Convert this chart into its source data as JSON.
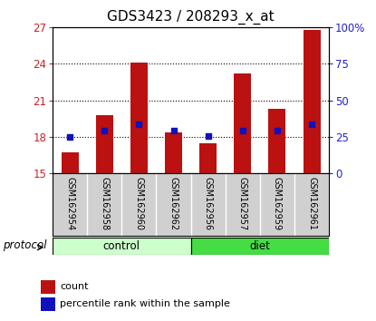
{
  "title": "GDS3423 / 208293_x_at",
  "samples": [
    "GSM162954",
    "GSM162958",
    "GSM162960",
    "GSM162962",
    "GSM162956",
    "GSM162957",
    "GSM162959",
    "GSM162961"
  ],
  "bar_values": [
    16.7,
    19.8,
    24.1,
    18.4,
    17.5,
    23.2,
    20.3,
    26.8
  ],
  "percentile_values": [
    18.0,
    18.55,
    19.05,
    18.55,
    18.05,
    18.55,
    18.55,
    19.05
  ],
  "bar_color": "#bb1111",
  "percentile_color": "#1111bb",
  "ylim_left": [
    15,
    27
  ],
  "ylim_right": [
    0,
    100
  ],
  "yticks_left": [
    15,
    18,
    21,
    24,
    27
  ],
  "yticks_right": [
    0,
    25,
    50,
    75,
    100
  ],
  "ytick_labels_right": [
    "0",
    "25",
    "50",
    "75",
    "100%"
  ],
  "groups": [
    {
      "label": "control",
      "start": 0,
      "end": 4,
      "color": "#ccffcc"
    },
    {
      "label": "diet",
      "start": 4,
      "end": 8,
      "color": "#44dd44"
    }
  ],
  "protocol_label": "protocol",
  "legend_count_label": "count",
  "legend_percentile_label": "percentile rank within the sample",
  "bar_bottom": 15,
  "title_fontsize": 11,
  "axis_label_color_left": "#cc2222",
  "axis_label_color_right": "#2222cc",
  "bar_width": 0.5,
  "sample_box_color": "#d0d0d0",
  "control_color": "#ccffcc",
  "diet_color": "#44dd44"
}
